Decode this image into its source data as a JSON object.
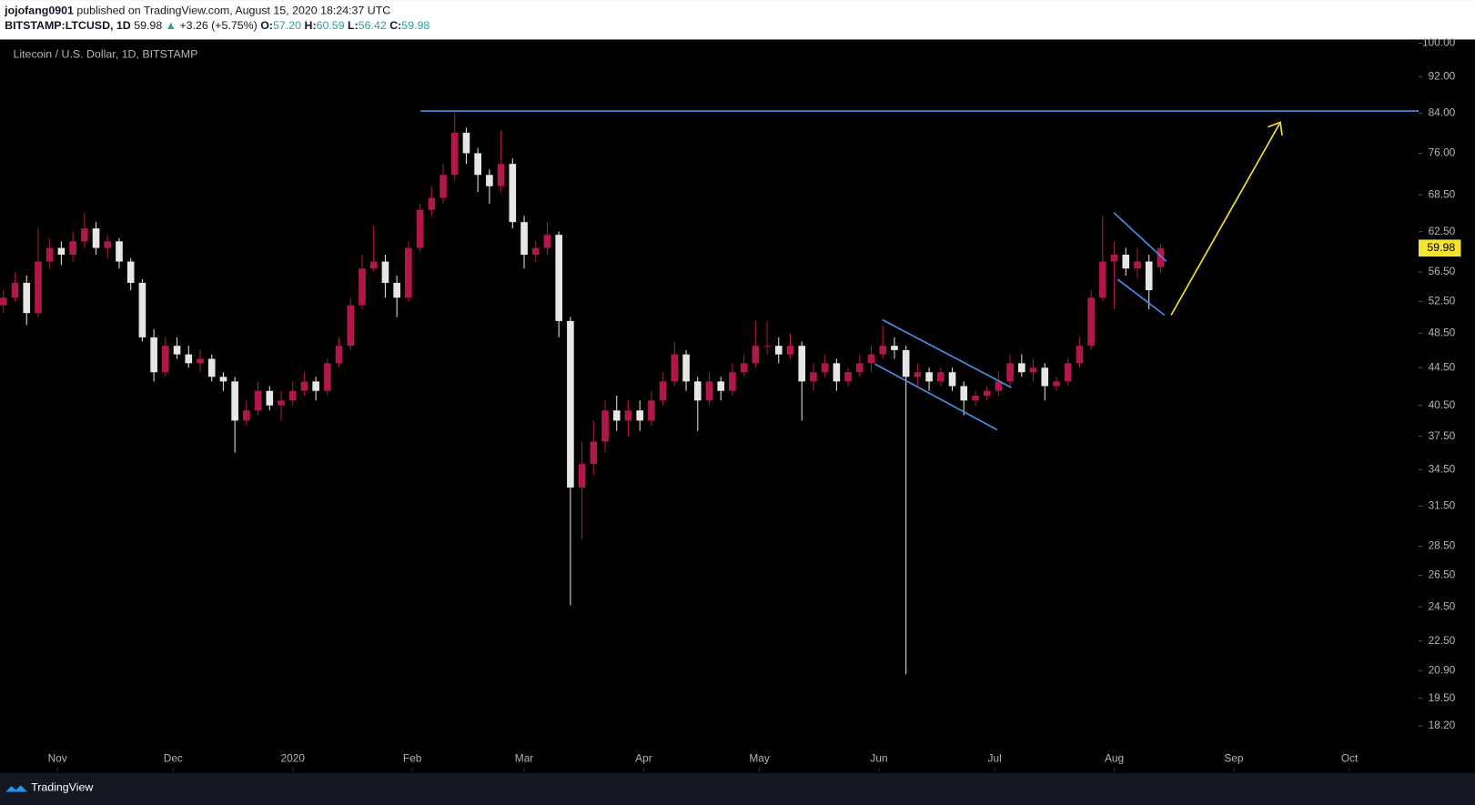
{
  "header": {
    "author": "jojofang0901",
    "published": "published on TradingView.com, August 15, 2020 18:24:37 UTC",
    "symbol": "BITSTAMP:LTCUSD, 1D",
    "last": "59.98",
    "arrow": "▲",
    "change": "+3.26 (+5.75%)",
    "o_label": "O:",
    "o": "57.20",
    "h_label": "H:",
    "h": "60.59",
    "l_label": "L:",
    "l": "56.42",
    "c_label": "C:",
    "c": "59.98"
  },
  "footer": {
    "brand": "TradingView"
  },
  "chart_data": {
    "type": "candlestick",
    "title": "Litecoin / U.S. Dollar, 1D, BITSTAMP",
    "log_scale": true,
    "up_color": "#b0174c",
    "down_color": "#e6e6e6",
    "last_price": 59.98,
    "last_price_color": "#f5e333",
    "ylim": [
      16.26,
      100.94
    ],
    "yticks": [
      {
        "value": 18.2,
        "label": "18.20"
      },
      {
        "value": 19.5,
        "label": "19.50"
      },
      {
        "value": 20.9,
        "label": "20.90"
      },
      {
        "value": 22.5,
        "label": "22.50"
      },
      {
        "value": 24.5,
        "label": "24.50"
      },
      {
        "value": 26.5,
        "label": "26.50"
      },
      {
        "value": 28.5,
        "label": "28.50"
      },
      {
        "value": 31.5,
        "label": "31.50"
      },
      {
        "value": 34.5,
        "label": "34.50"
      },
      {
        "value": 37.5,
        "label": "37.50"
      },
      {
        "value": 40.5,
        "label": "40.50"
      },
      {
        "value": 44.5,
        "label": "44.50"
      },
      {
        "value": 48.5,
        "label": "48.50"
      },
      {
        "value": 52.5,
        "label": "52.50"
      },
      {
        "value": 56.5,
        "label": "56.50"
      },
      {
        "value": 62.5,
        "label": "62.50"
      },
      {
        "value": 68.5,
        "label": "68.50"
      },
      {
        "value": 76,
        "label": "76.00"
      },
      {
        "value": 84,
        "label": "84.00"
      },
      {
        "value": 92,
        "label": "92.00"
      },
      {
        "value": 100,
        "label": "100.00"
      }
    ],
    "xlim": [
      -0.3,
      122.3
    ],
    "xticks": [
      {
        "value": 4.667,
        "label": "Nov"
      },
      {
        "value": 14.667,
        "label": "Dec"
      },
      {
        "value": 25,
        "label": "2020"
      },
      {
        "value": 35.333,
        "label": "Feb"
      },
      {
        "value": 45,
        "label": "Mar"
      },
      {
        "value": 55.333,
        "label": "Apr"
      },
      {
        "value": 65.333,
        "label": "May"
      },
      {
        "value": 75.667,
        "label": "Jun"
      },
      {
        "value": 85.667,
        "label": "Jul"
      },
      {
        "value": 96,
        "label": "Aug"
      },
      {
        "value": 106.333,
        "label": "Sep"
      },
      {
        "value": 116.333,
        "label": "Oct"
      }
    ],
    "candles": [
      [
        52,
        54,
        51,
        53
      ],
      [
        53,
        56.5,
        52.5,
        55
      ],
      [
        55,
        56,
        49.5,
        51
      ],
      [
        51,
        63,
        50.5,
        58
      ],
      [
        58,
        61.5,
        57,
        60
      ],
      [
        60,
        61,
        57.5,
        59
      ],
      [
        59,
        62.5,
        58,
        61
      ],
      [
        61,
        65.5,
        60,
        63
      ],
      [
        63,
        64,
        59,
        60
      ],
      [
        60,
        62,
        58.5,
        61
      ],
      [
        61,
        61.5,
        57,
        58
      ],
      [
        58,
        58.5,
        54,
        55
      ],
      [
        55,
        55.5,
        47.5,
        48
      ],
      [
        48,
        49,
        43,
        44
      ],
      [
        44,
        48,
        43.5,
        47
      ],
      [
        47,
        48,
        45.5,
        46
      ],
      [
        46,
        47,
        44.5,
        45
      ],
      [
        45,
        46.5,
        44,
        45.5
      ],
      [
        45.5,
        46,
        43,
        43.5
      ],
      [
        43.5,
        44,
        42,
        43
      ],
      [
        43,
        43.5,
        36,
        39
      ],
      [
        39,
        41,
        38.5,
        40
      ],
      [
        40,
        43,
        39.5,
        42
      ],
      [
        42,
        42.5,
        40,
        40.5
      ],
      [
        40.5,
        42,
        39,
        41
      ],
      [
        41,
        43,
        40.5,
        42
      ],
      [
        42,
        44,
        41.5,
        43
      ],
      [
        43,
        43.5,
        41,
        42
      ],
      [
        42,
        45.5,
        41.5,
        45
      ],
      [
        45,
        48,
        44.5,
        47
      ],
      [
        47,
        53,
        46.5,
        52
      ],
      [
        52,
        59,
        51.5,
        57
      ],
      [
        57,
        63.5,
        56.5,
        58
      ],
      [
        58,
        59,
        53,
        55
      ],
      [
        55,
        56,
        50.5,
        53
      ],
      [
        53,
        61,
        52.5,
        60
      ],
      [
        60,
        67,
        59.5,
        66
      ],
      [
        66,
        70,
        65,
        68
      ],
      [
        68,
        74,
        67,
        72
      ],
      [
        72,
        84.5,
        71,
        80
      ],
      [
        80,
        81,
        74,
        76
      ],
      [
        76,
        77,
        69,
        72
      ],
      [
        72,
        73,
        67,
        70
      ],
      [
        70,
        80.5,
        69,
        74
      ],
      [
        74,
        75,
        63,
        64
      ],
      [
        64,
        65,
        57,
        59
      ],
      [
        59,
        61,
        58,
        60
      ],
      [
        60,
        64,
        59,
        62
      ],
      [
        62,
        62.5,
        48,
        50
      ],
      [
        50,
        50.5,
        24.6,
        33
      ],
      [
        33,
        37,
        29,
        35
      ],
      [
        35,
        39,
        34,
        37
      ],
      [
        37,
        41,
        36,
        40
      ],
      [
        40,
        41.5,
        38,
        39
      ],
      [
        39,
        41,
        37.5,
        40
      ],
      [
        40,
        41,
        38,
        39
      ],
      [
        39,
        42,
        38.5,
        41
      ],
      [
        41,
        44,
        40.5,
        43
      ],
      [
        43,
        47.5,
        42.5,
        46
      ],
      [
        46,
        46.5,
        42,
        43
      ],
      [
        43,
        43.5,
        38,
        41
      ],
      [
        41,
        44,
        40.5,
        43
      ],
      [
        43,
        43.5,
        41,
        42
      ],
      [
        42,
        45,
        41.5,
        44
      ],
      [
        44,
        46,
        43.5,
        45
      ],
      [
        45,
        50,
        44.5,
        47
      ],
      [
        47,
        50,
        46,
        47
      ],
      [
        47,
        48,
        45,
        46
      ],
      [
        46,
        48.5,
        45.5,
        47
      ],
      [
        47,
        47.5,
        39,
        43
      ],
      [
        43,
        45,
        42,
        44
      ],
      [
        44,
        46,
        43.5,
        45
      ],
      [
        45,
        45.5,
        42,
        43
      ],
      [
        43,
        44.5,
        42.5,
        44
      ],
      [
        44,
        46,
        43.5,
        45
      ],
      [
        45,
        47,
        44,
        46
      ],
      [
        46,
        49.5,
        45.5,
        47
      ],
      [
        47,
        48,
        45.5,
        46.5
      ],
      [
        46.5,
        47,
        20.7,
        43.5
      ],
      [
        43.5,
        45,
        42.5,
        44
      ],
      [
        44,
        44.5,
        42,
        43
      ],
      [
        43,
        44.5,
        42.5,
        44
      ],
      [
        44,
        44.5,
        42,
        42.5
      ],
      [
        42.5,
        43,
        39.5,
        41
      ],
      [
        41,
        42,
        40.5,
        41.5
      ],
      [
        41.5,
        42.5,
        41,
        42
      ],
      [
        42,
        44,
        41.5,
        43
      ],
      [
        43,
        46,
        42.5,
        45
      ],
      [
        45,
        46,
        43.5,
        44
      ],
      [
        44,
        45.5,
        43,
        44.5
      ],
      [
        44.5,
        45,
        41,
        42.5
      ],
      [
        42.5,
        43.5,
        42,
        43
      ],
      [
        43,
        45.5,
        42.5,
        45
      ],
      [
        45,
        48,
        44.5,
        47
      ],
      [
        47,
        54,
        46.5,
        53
      ],
      [
        53,
        65,
        52.5,
        58
      ],
      [
        58,
        61,
        51.5,
        59
      ],
      [
        59,
        60,
        56,
        57
      ],
      [
        57,
        60,
        55.5,
        58
      ],
      [
        58,
        59,
        51.5,
        54
      ],
      [
        57.2,
        60.59,
        56.42,
        59.98
      ]
    ]
  }
}
